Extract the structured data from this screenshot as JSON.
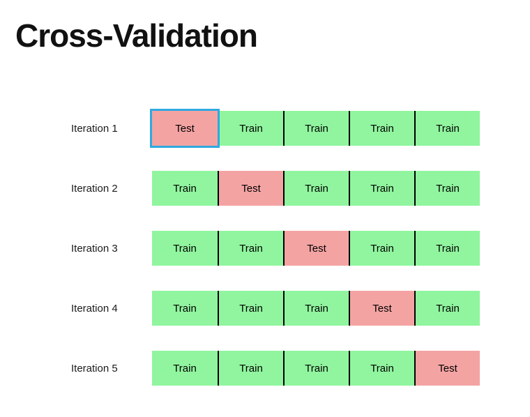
{
  "title": "Cross-Validation",
  "colors": {
    "background": "#FFFFFF",
    "train_fill": "#90F59E",
    "test_fill": "#F4A3A3",
    "divider": "#000000",
    "selection_border": "#2EA9E1",
    "text": "#1A1A1A"
  },
  "cell_types": {
    "test_label": "Test",
    "train_label": "Train"
  },
  "grid": {
    "rows": [
      {
        "label": "Iteration 1",
        "cells": [
          "Test",
          "Train",
          "Train",
          "Train",
          "Train"
        ]
      },
      {
        "label": "Iteration 2",
        "cells": [
          "Train",
          "Test",
          "Train",
          "Train",
          "Train"
        ]
      },
      {
        "label": "Iteration 3",
        "cells": [
          "Train",
          "Train",
          "Test",
          "Train",
          "Train"
        ]
      },
      {
        "label": "Iteration 4",
        "cells": [
          "Train",
          "Train",
          "Train",
          "Test",
          "Train"
        ]
      },
      {
        "label": "Iteration 5",
        "cells": [
          "Train",
          "Train",
          "Train",
          "Train",
          "Test"
        ]
      }
    ],
    "highlight": {
      "row": 0,
      "col": 0
    }
  }
}
